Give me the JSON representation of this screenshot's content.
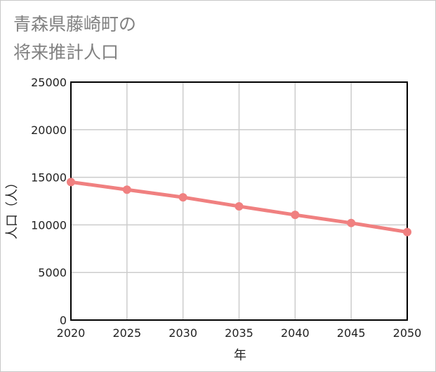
{
  "chart_data": {
    "type": "line",
    "title_lines": [
      "青森県藤崎町の",
      "将来推計人口"
    ],
    "xlabel": "年",
    "ylabel": "人口（人）",
    "x": [
      2020,
      2025,
      2030,
      2035,
      2040,
      2045,
      2050
    ],
    "x_tick_labels": [
      "2020",
      "2025",
      "2030",
      "2035",
      "2040",
      "2045",
      "2050"
    ],
    "xlim": [
      2020,
      2050
    ],
    "ylim": [
      0,
      25000
    ],
    "y_ticks": [
      0,
      5000,
      10000,
      15000,
      20000,
      25000
    ],
    "y_tick_labels": [
      "0",
      "5000",
      "10000",
      "15000",
      "20000",
      "25000"
    ],
    "grid": true,
    "series": [
      {
        "name": "人口",
        "values": [
          14500,
          13700,
          12900,
          11950,
          11050,
          10200,
          9250
        ],
        "color": "#f08080"
      }
    ]
  }
}
